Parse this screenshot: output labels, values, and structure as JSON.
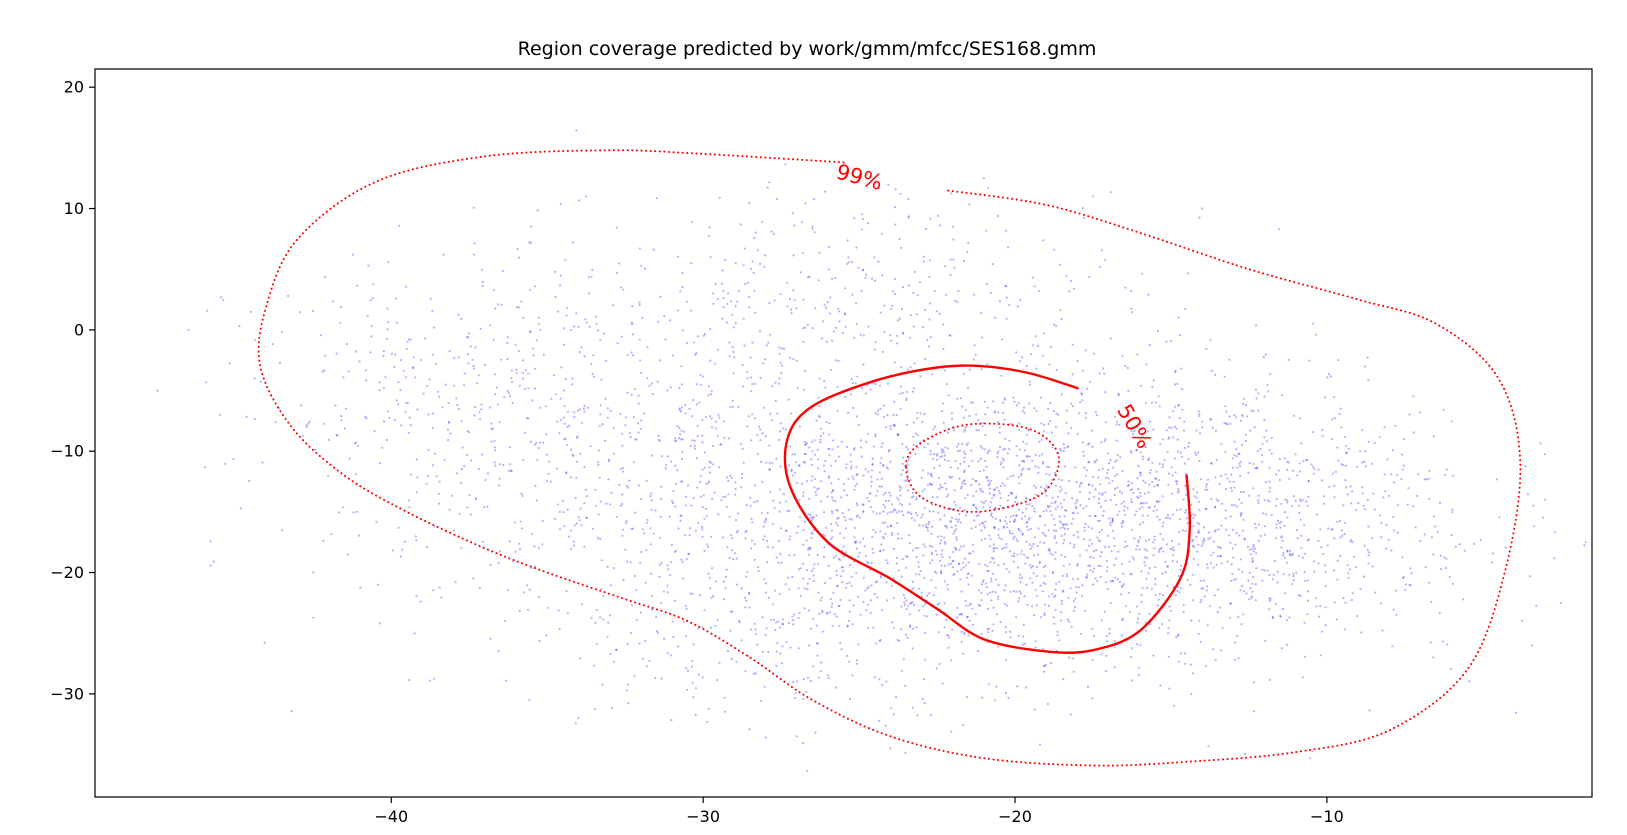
{
  "chart_data": {
    "type": "scatter",
    "title": "Region coverage predicted by work/gmm/mfcc/SES168.gmm",
    "xlabel": "",
    "ylabel": "",
    "xlim": [
      -49.5,
      -1.5
    ],
    "ylim": [
      -38.5,
      21.5
    ],
    "grid": false,
    "legend": "none",
    "x_ticks": [
      {
        "value": -40,
        "label": "−40"
      },
      {
        "value": -30,
        "label": "−30"
      },
      {
        "value": -20,
        "label": "−20"
      },
      {
        "value": -10,
        "label": "−10"
      }
    ],
    "y_ticks": [
      {
        "value": 20,
        "label": "20"
      },
      {
        "value": 10,
        "label": "10"
      },
      {
        "value": 0,
        "label": "0"
      },
      {
        "value": -10,
        "label": "−10"
      },
      {
        "value": -20,
        "label": "−20"
      },
      {
        "value": -30,
        "label": "−30"
      }
    ],
    "point_color": "#0000ff",
    "contour_color": "#ff0000",
    "contours": [
      {
        "label": "99%",
        "style": "dotted",
        "label_at": [
          -25.0,
          12.5
        ],
        "label_angle": 15,
        "points": [
          [
            -25.5,
            13.8
          ],
          [
            -30,
            14.5
          ],
          [
            -33,
            14.8
          ],
          [
            -37,
            14.3
          ],
          [
            -40.5,
            12.2
          ],
          [
            -43,
            7.5
          ],
          [
            -44,
            2
          ],
          [
            -44.2,
            -3
          ],
          [
            -43.2,
            -8
          ],
          [
            -41.5,
            -12
          ],
          [
            -39.5,
            -15
          ],
          [
            -37,
            -18
          ],
          [
            -35,
            -20
          ],
          [
            -32.5,
            -22.2
          ],
          [
            -30.5,
            -24
          ],
          [
            -28.5,
            -27
          ],
          [
            -26.5,
            -30.5
          ],
          [
            -24,
            -33.5
          ],
          [
            -21,
            -35.3
          ],
          [
            -17.5,
            -35.9
          ],
          [
            -14.5,
            -35.6
          ],
          [
            -11,
            -34.8
          ],
          [
            -8,
            -33
          ],
          [
            -5.5,
            -28
          ],
          [
            -4.3,
            -20
          ],
          [
            -3.8,
            -11
          ],
          [
            -4.5,
            -4
          ],
          [
            -6.5,
            0.5
          ],
          [
            -9,
            2.5
          ],
          [
            -12.5,
            5
          ],
          [
            -16,
            8
          ],
          [
            -19,
            10.3
          ],
          [
            -22.2,
            11.5
          ]
        ]
      },
      {
        "label": "50%",
        "style": "solid",
        "label_at": [
          -16.2,
          -8.0
        ],
        "label_angle": 60,
        "points": [
          [
            -18,
            -4.8
          ],
          [
            -19.5,
            -3.6
          ],
          [
            -21,
            -3
          ],
          [
            -22.5,
            -3.1
          ],
          [
            -24.5,
            -4.2
          ],
          [
            -26.5,
            -6.3
          ],
          [
            -27.3,
            -9
          ],
          [
            -27.2,
            -13
          ],
          [
            -26,
            -17.5
          ],
          [
            -24,
            -20.5
          ],
          [
            -22.5,
            -23
          ],
          [
            -21,
            -25.5
          ],
          [
            -19,
            -26.5
          ],
          [
            -17.5,
            -26.4
          ],
          [
            -16,
            -24.8
          ],
          [
            -14.7,
            -20.5
          ],
          [
            -14.4,
            -16.5
          ],
          [
            -14.5,
            -12
          ]
        ]
      },
      {
        "label": "",
        "style": "dotted",
        "closed": true,
        "points": [
          [
            -23.5,
            -11.2
          ],
          [
            -23.0,
            -9.3
          ],
          [
            -21.5,
            -7.8
          ],
          [
            -19.5,
            -8.2
          ],
          [
            -18.6,
            -10.5
          ],
          [
            -19.2,
            -13.6
          ],
          [
            -21.3,
            -15.0
          ],
          [
            -23.0,
            -13.8
          ]
        ]
      }
    ],
    "scatter_clusters": [
      {
        "cx": -21,
        "cy": -16,
        "sx": 5.5,
        "sy": 6,
        "n": 2100
      },
      {
        "cx": -13,
        "cy": -15,
        "sx": 4,
        "sy": 6.5,
        "n": 650
      },
      {
        "cx": -32,
        "cy": -10,
        "sx": 5,
        "sy": 8,
        "n": 650
      },
      {
        "cx": -38,
        "cy": -5,
        "sx": 3.5,
        "sy": 5.5,
        "n": 250
      },
      {
        "cx": -24,
        "cy": 3,
        "sx": 4,
        "sy": 4.5,
        "n": 300
      },
      {
        "cx": -28,
        "cy": -25,
        "sx": 4,
        "sy": 3.5,
        "n": 150
      }
    ],
    "outlier_points": [
      [
        -47.5,
        -5
      ],
      [
        -46.5,
        0
      ],
      [
        -45.5,
        -7
      ],
      [
        -44.5,
        1.5
      ],
      [
        -43.5,
        -16.5
      ],
      [
        -42.5,
        -20
      ],
      [
        -3,
        -14
      ],
      [
        -1.7,
        -17.5
      ],
      [
        -2.5,
        -22.5
      ],
      [
        -24,
        -34.5
      ],
      [
        -27,
        -33.5
      ],
      [
        -34,
        -32
      ],
      [
        -21,
        12.5
      ],
      [
        -17.5,
        11
      ],
      [
        -14,
        10
      ],
      [
        -22,
        8.5
      ]
    ]
  }
}
